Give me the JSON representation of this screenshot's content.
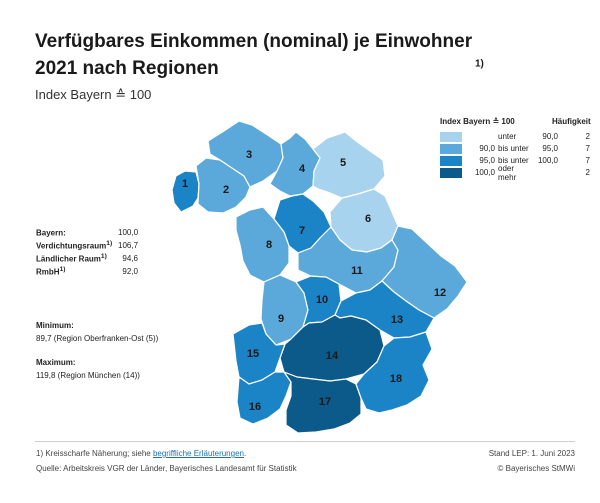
{
  "title": "Verfügbares Einkommen (nominal) je Einwohner 2021 nach Regionen",
  "title_footnote": "1)",
  "subtitle": "Index Bayern ≙ 100",
  "colors": {
    "class1": "#a8d3ee",
    "class2": "#5ba8db",
    "class3": "#1b84c6",
    "class4": "#0b5a8a",
    "border": "#ffffff"
  },
  "regions": [
    {
      "num": "1",
      "class": "class3"
    },
    {
      "num": "2",
      "class": "class2"
    },
    {
      "num": "3",
      "class": "class2"
    },
    {
      "num": "4",
      "class": "class2"
    },
    {
      "num": "5",
      "class": "class1"
    },
    {
      "num": "6",
      "class": "class1"
    },
    {
      "num": "7",
      "class": "class3"
    },
    {
      "num": "8",
      "class": "class2"
    },
    {
      "num": "9",
      "class": "class2"
    },
    {
      "num": "10",
      "class": "class3"
    },
    {
      "num": "11",
      "class": "class2"
    },
    {
      "num": "12",
      "class": "class2"
    },
    {
      "num": "13",
      "class": "class3"
    },
    {
      "num": "14",
      "class": "class4"
    },
    {
      "num": "15",
      "class": "class3"
    },
    {
      "num": "16",
      "class": "class3"
    },
    {
      "num": "17",
      "class": "class4"
    },
    {
      "num": "18",
      "class": "class3"
    }
  ],
  "legend": {
    "header_index": "Index Bayern ≙ 100",
    "header_freq": "Häufigkeit",
    "rows": [
      {
        "a": "",
        "b": "unter",
        "c": "90,0",
        "d": "",
        "freq": "2",
        "color_key": "class1"
      },
      {
        "a": "90,0",
        "b": "bis unter",
        "c": "95,0",
        "d": "",
        "freq": "7",
        "color_key": "class2"
      },
      {
        "a": "95,0",
        "b": "bis unter",
        "c": "100,0",
        "d": "",
        "freq": "7",
        "color_key": "class3"
      },
      {
        "a": "100,0",
        "b": "oder mehr",
        "c": "",
        "d": "",
        "freq": "2",
        "color_key": "class4"
      }
    ]
  },
  "stats": [
    {
      "label": "Bayern:",
      "sup": "",
      "value": "100,0"
    },
    {
      "label": "Verdichtungsraum",
      "sup": "1)",
      "value": "106,7"
    },
    {
      "label": "Ländlicher Raum",
      "sup": "1)",
      "value": "94,6"
    },
    {
      "label": "RmbH",
      "sup": "1)",
      "value": "92,0"
    }
  ],
  "minimum": {
    "label": "Minimum:",
    "value": "89,7  (Region Oberfranken-Ost (5))"
  },
  "maximum": {
    "label": "Maximum:",
    "value": "119,8  (Region München (14))"
  },
  "footnote_prefix": "1) Kreisscharfe Näherung; siehe ",
  "footnote_link": "begriffliche Erläuterungen",
  "footnote_suffix": ".",
  "source": "Quelle: Arbeitskreis VGR der Länder, Bayerisches Landesamt für Statistik",
  "stand": "Stand LEP: 1. Juni 2023",
  "copyright": "© Bayerisches StMWi"
}
